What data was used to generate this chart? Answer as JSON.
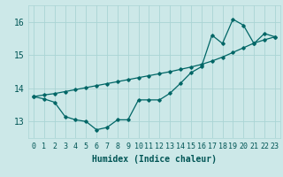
{
  "xlabel": "Humidex (Indice chaleur)",
  "xlim": [
    -0.5,
    23.5
  ],
  "ylim": [
    12.5,
    16.5
  ],
  "yticks": [
    13,
    14,
    15,
    16
  ],
  "xticks": [
    0,
    1,
    2,
    3,
    4,
    5,
    6,
    7,
    8,
    9,
    10,
    11,
    12,
    13,
    14,
    15,
    16,
    17,
    18,
    19,
    20,
    21,
    22,
    23
  ],
  "bg_color": "#cce8e8",
  "line_color": "#006666",
  "smooth_x": [
    0,
    1,
    2,
    3,
    4,
    5,
    6,
    7,
    8,
    9,
    10,
    11,
    12,
    13,
    14,
    15,
    16,
    17,
    18,
    19,
    20,
    21,
    22,
    23
  ],
  "smooth_y": [
    13.75,
    13.8,
    13.84,
    13.9,
    13.96,
    14.02,
    14.08,
    14.14,
    14.2,
    14.26,
    14.32,
    14.38,
    14.44,
    14.5,
    14.57,
    14.64,
    14.72,
    14.82,
    14.94,
    15.08,
    15.22,
    15.36,
    15.46,
    15.55
  ],
  "jagged_x": [
    0,
    1,
    2,
    3,
    4,
    5,
    6,
    7,
    8,
    9,
    10,
    11,
    12,
    13,
    14,
    15,
    16,
    17,
    18,
    19,
    20,
    21,
    22,
    23
  ],
  "jagged_y": [
    13.75,
    13.68,
    13.58,
    13.15,
    13.05,
    13.0,
    12.75,
    12.82,
    13.05,
    13.05,
    13.65,
    13.65,
    13.65,
    13.85,
    14.15,
    14.47,
    14.65,
    15.6,
    15.35,
    16.08,
    15.9,
    15.35,
    15.65,
    15.55
  ],
  "grid_color": "#aad4d4",
  "font_color": "#005555",
  "tick_fontsize": 6,
  "xlabel_fontsize": 7
}
